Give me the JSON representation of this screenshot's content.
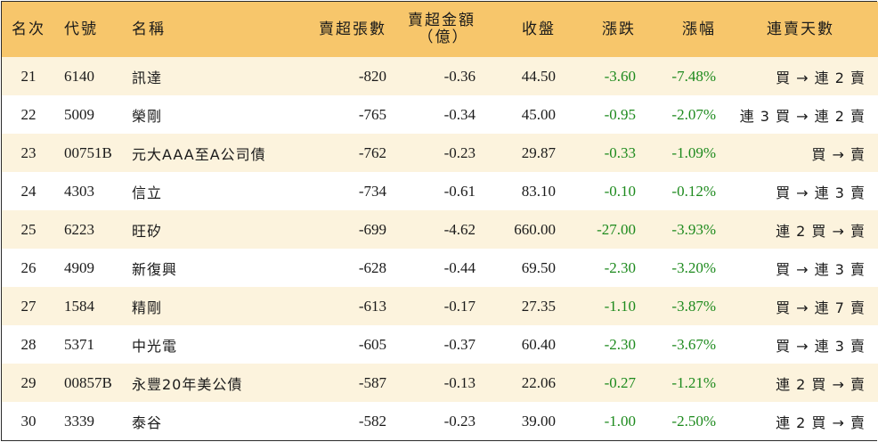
{
  "headers": {
    "rank": "名次",
    "code": "代號",
    "name": "名稱",
    "sell_volume": "賣超張數",
    "sell_amount_line1": "賣超金額",
    "sell_amount_line2": "（億）",
    "close": "收盤",
    "change": "漲跌",
    "change_pct": "漲幅",
    "streak": "連賣天數"
  },
  "rows": [
    {
      "rank": "21",
      "code": "6140",
      "name": "訊達",
      "sell_volume": "-820",
      "sell_amount": "-0.36",
      "close": "44.50",
      "change": "-3.60",
      "change_pct": "-7.48%",
      "streak": "買 → 連 2 賣"
    },
    {
      "rank": "22",
      "code": "5009",
      "name": "榮剛",
      "sell_volume": "-765",
      "sell_amount": "-0.34",
      "close": "45.00",
      "change": "-0.95",
      "change_pct": "-2.07%",
      "streak": "連 3 買 → 連 2 賣"
    },
    {
      "rank": "23",
      "code": "00751B",
      "name": "元大AAA至A公司債",
      "sell_volume": "-762",
      "sell_amount": "-0.23",
      "close": "29.87",
      "change": "-0.33",
      "change_pct": "-1.09%",
      "streak": "買 → 賣"
    },
    {
      "rank": "24",
      "code": "4303",
      "name": "信立",
      "sell_volume": "-734",
      "sell_amount": "-0.61",
      "close": "83.10",
      "change": "-0.10",
      "change_pct": "-0.12%",
      "streak": "買 → 連 3 賣"
    },
    {
      "rank": "25",
      "code": "6223",
      "name": "旺矽",
      "sell_volume": "-699",
      "sell_amount": "-4.62",
      "close": "660.00",
      "change": "-27.00",
      "change_pct": "-3.93%",
      "streak": "連 2 買 → 賣"
    },
    {
      "rank": "26",
      "code": "4909",
      "name": "新復興",
      "sell_volume": "-628",
      "sell_amount": "-0.44",
      "close": "69.50",
      "change": "-2.30",
      "change_pct": "-3.20%",
      "streak": "買 → 連 3 賣"
    },
    {
      "rank": "27",
      "code": "1584",
      "name": "精剛",
      "sell_volume": "-613",
      "sell_amount": "-0.17",
      "close": "27.35",
      "change": "-1.10",
      "change_pct": "-3.87%",
      "streak": "買 → 連 7 賣"
    },
    {
      "rank": "28",
      "code": "5371",
      "name": "中光電",
      "sell_volume": "-605",
      "sell_amount": "-0.37",
      "close": "60.40",
      "change": "-2.30",
      "change_pct": "-3.67%",
      "streak": "買 → 連 3 賣"
    },
    {
      "rank": "29",
      "code": "00857B",
      "name": "永豐20年美公債",
      "sell_volume": "-587",
      "sell_amount": "-0.13",
      "close": "22.06",
      "change": "-0.27",
      "change_pct": "-1.21%",
      "streak": "連 2 買 → 賣"
    },
    {
      "rank": "30",
      "code": "3339",
      "name": "泰谷",
      "sell_volume": "-582",
      "sell_amount": "-0.23",
      "close": "39.00",
      "change": "-1.00",
      "change_pct": "-2.50%",
      "streak": "連 2 買 → 賣"
    }
  ],
  "colors": {
    "header_bg": "#f7c66b",
    "stripe_bg": "#fcf3dd",
    "down_green": "#1d8a1d"
  }
}
